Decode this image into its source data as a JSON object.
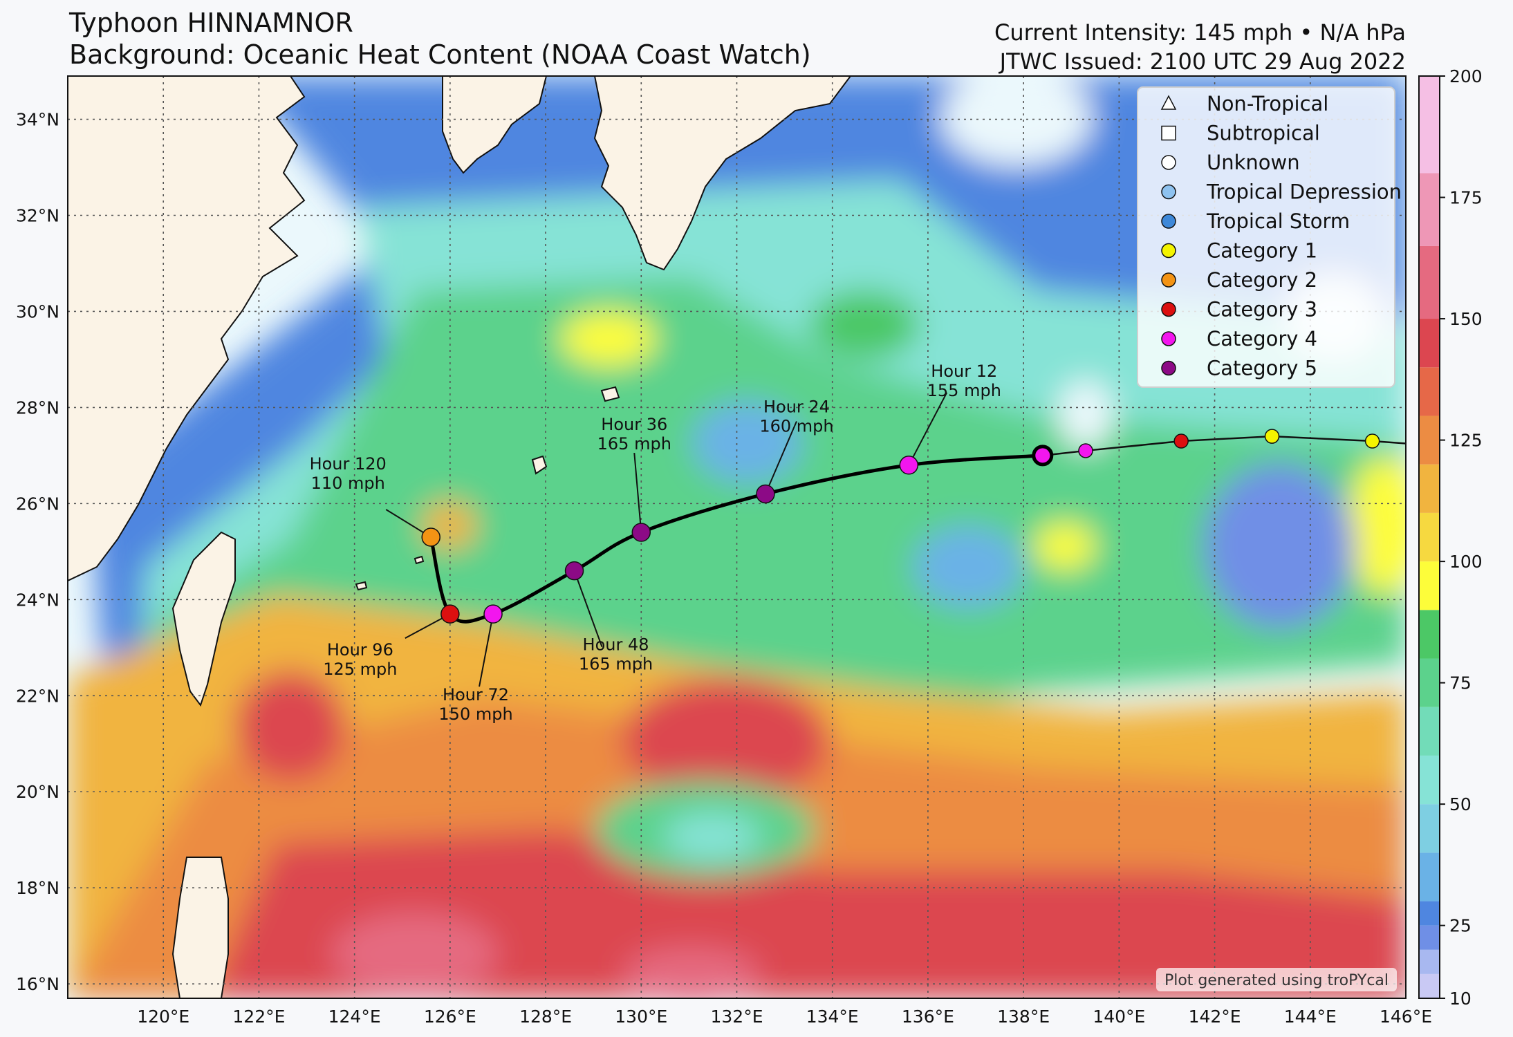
{
  "title": {
    "line1": "Typhoon HINNAMNOR",
    "line2": "Background: Oceanic Heat Content (NOAA Coast Watch)"
  },
  "info": {
    "intensity": "Current Intensity: 145 mph • N/A hPa",
    "issued": "JTWC Issued: 2100 UTC 29 Aug 2022"
  },
  "map": {
    "lon_range": [
      118,
      146
    ],
    "lat_range": [
      15.7,
      34.9
    ],
    "lon_ticks": [
      "120°E",
      "122°E",
      "124°E",
      "126°E",
      "128°E",
      "130°E",
      "132°E",
      "134°E",
      "136°E",
      "138°E",
      "140°E",
      "142°E",
      "144°E",
      "146°E"
    ],
    "lon_tick_values": [
      120,
      122,
      124,
      126,
      128,
      130,
      132,
      134,
      136,
      138,
      140,
      142,
      144,
      146
    ],
    "lat_ticks": [
      "16°N",
      "18°N",
      "20°N",
      "22°N",
      "24°N",
      "26°N",
      "28°N",
      "30°N",
      "32°N",
      "34°N"
    ],
    "lat_tick_values": [
      16,
      18,
      20,
      22,
      24,
      26,
      28,
      30,
      32,
      34
    ],
    "gridlines": true
  },
  "colorbar": {
    "tick_labels": [
      "10",
      "25",
      "50",
      "75",
      "100",
      "125",
      "150",
      "175",
      "200"
    ],
    "tick_values": [
      10,
      25,
      50,
      75,
      100,
      125,
      150,
      175,
      200
    ],
    "colors": {
      "0": "#c9c9f4",
      "1": "#a8b8f0",
      "2": "#6f8fe6",
      "3": "#4f86e0",
      "4": "#6ab2e6",
      "5": "#7ecfe2",
      "6": "#86e3d6",
      "7": "#72dcb8",
      "8": "#5cd28c",
      "9": "#4cc866",
      "10": "#fdfd3a",
      "11": "#f6d940",
      "12": "#f1b43f",
      "13": "#ec8c43",
      "14": "#e66848",
      "15": "#dc4650",
      "16": "#e56a80",
      "17": "#ee97b6",
      "18": "#f5bfe4"
    }
  },
  "legend": {
    "position": "top-right",
    "items": [
      {
        "label": "Non-Tropical",
        "marker": "triangle",
        "color": "#ffffff"
      },
      {
        "label": "Subtropical",
        "marker": "square",
        "color": "#ffffff"
      },
      {
        "label": "Unknown",
        "marker": "circle",
        "color": "#ffffff"
      },
      {
        "label": "Tropical Depression",
        "marker": "circle",
        "color": "#8ec2ef"
      },
      {
        "label": "Tropical Storm",
        "marker": "circle",
        "color": "#3e88d8"
      },
      {
        "label": "Category 1",
        "marker": "circle",
        "color": "#f4f400"
      },
      {
        "label": "Category 2",
        "marker": "circle",
        "color": "#f39314"
      },
      {
        "label": "Category 3",
        "marker": "circle",
        "color": "#dc1010"
      },
      {
        "label": "Category 4",
        "marker": "circle",
        "color": "#f216ee"
      },
      {
        "label": "Category 5",
        "marker": "circle",
        "color": "#8c0a86"
      }
    ]
  },
  "past_track": [
    {
      "lon": 146.0,
      "lat": 27.25
    },
    {
      "lon": 145.3,
      "lat": 27.3,
      "cat": "Category 1"
    },
    {
      "lon": 143.2,
      "lat": 27.4,
      "cat": "Category 1"
    },
    {
      "lon": 141.3,
      "lat": 27.3,
      "cat": "Category 3"
    },
    {
      "lon": 139.3,
      "lat": 27.1,
      "cat": "Category 4"
    }
  ],
  "current_position": {
    "lon": 138.4,
    "lat": 27.0,
    "cat": "Category 4"
  },
  "forecast_track": [
    {
      "lon": 135.6,
      "lat": 26.8,
      "cat": "Category 4",
      "hour": "Hour 12",
      "wind": "155 mph"
    },
    {
      "lon": 132.6,
      "lat": 26.2,
      "cat": "Category 5",
      "hour": "Hour 24",
      "wind": "160 mph"
    },
    {
      "lon": 130.0,
      "lat": 25.4,
      "cat": "Category 5",
      "hour": "Hour 36",
      "wind": "165 mph"
    },
    {
      "lon": 128.6,
      "lat": 24.6,
      "cat": "Category 5",
      "hour": "Hour 48",
      "wind": "165 mph"
    },
    {
      "lon": 126.9,
      "lat": 23.7,
      "cat": "Category 4",
      "hour": "Hour 72",
      "wind": "150 mph"
    },
    {
      "lon": 126.0,
      "lat": 23.7,
      "cat": "Category 3",
      "hour": "Hour 96",
      "wind": "125 mph"
    },
    {
      "lon": 125.6,
      "lat": 25.3,
      "cat": "Category 2",
      "hour": "Hour 120",
      "wind": "110 mph"
    }
  ],
  "credit": "Plot generated using troPYcal"
}
